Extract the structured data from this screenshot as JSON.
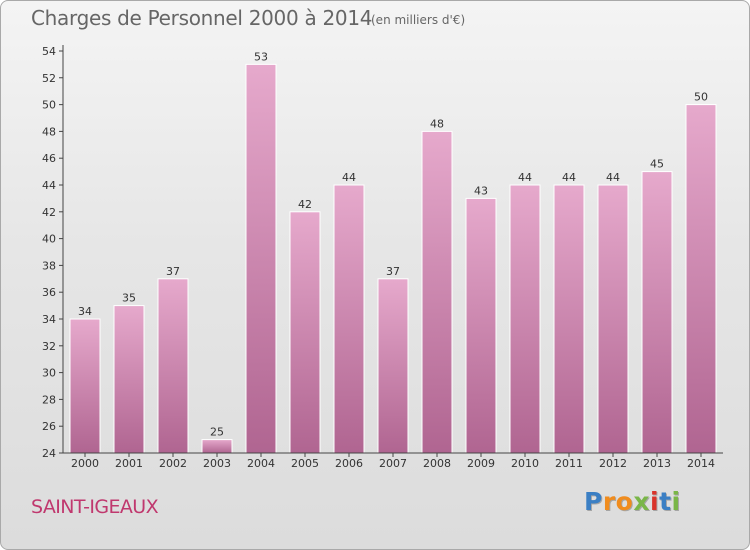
{
  "header": {
    "title": "Charges de Personnel 2000 à 2014",
    "subtitle": "(en milliers d'€)"
  },
  "footer": {
    "commune": "SAINT-IGEAUX",
    "logo_letters": [
      "P",
      "r",
      "o",
      "x",
      "i",
      "t",
      "i"
    ],
    "logo_colors": [
      "#3b7fc4",
      "#f08c1e",
      "#f08c1e",
      "#7ab648",
      "#d9332a",
      "#3b7fc4",
      "#7ab648"
    ]
  },
  "colors": {
    "bar_fill_light": "#e6a9cc",
    "bar_fill_dark": "#b06591",
    "bar_stroke": "#ffffff",
    "axis": "#444444",
    "grid_tick": "#444444"
  },
  "chart_data": {
    "type": "bar",
    "categories": [
      "2000",
      "2001",
      "2002",
      "2003",
      "2004",
      "2005",
      "2006",
      "2007",
      "2008",
      "2009",
      "2010",
      "2011",
      "2012",
      "2013",
      "2014"
    ],
    "values": [
      34,
      35,
      37,
      25,
      53,
      42,
      44,
      37,
      48,
      43,
      44,
      44,
      44,
      45,
      50
    ],
    "title": "Charges de Personnel 2000 à 2014",
    "subtitle": "(en milliers d'€)",
    "ylim": [
      24,
      54
    ],
    "yticks": [
      24,
      26,
      28,
      30,
      32,
      34,
      36,
      38,
      40,
      42,
      44,
      46,
      48,
      50,
      52,
      54
    ],
    "grid": false,
    "legend": "none"
  }
}
